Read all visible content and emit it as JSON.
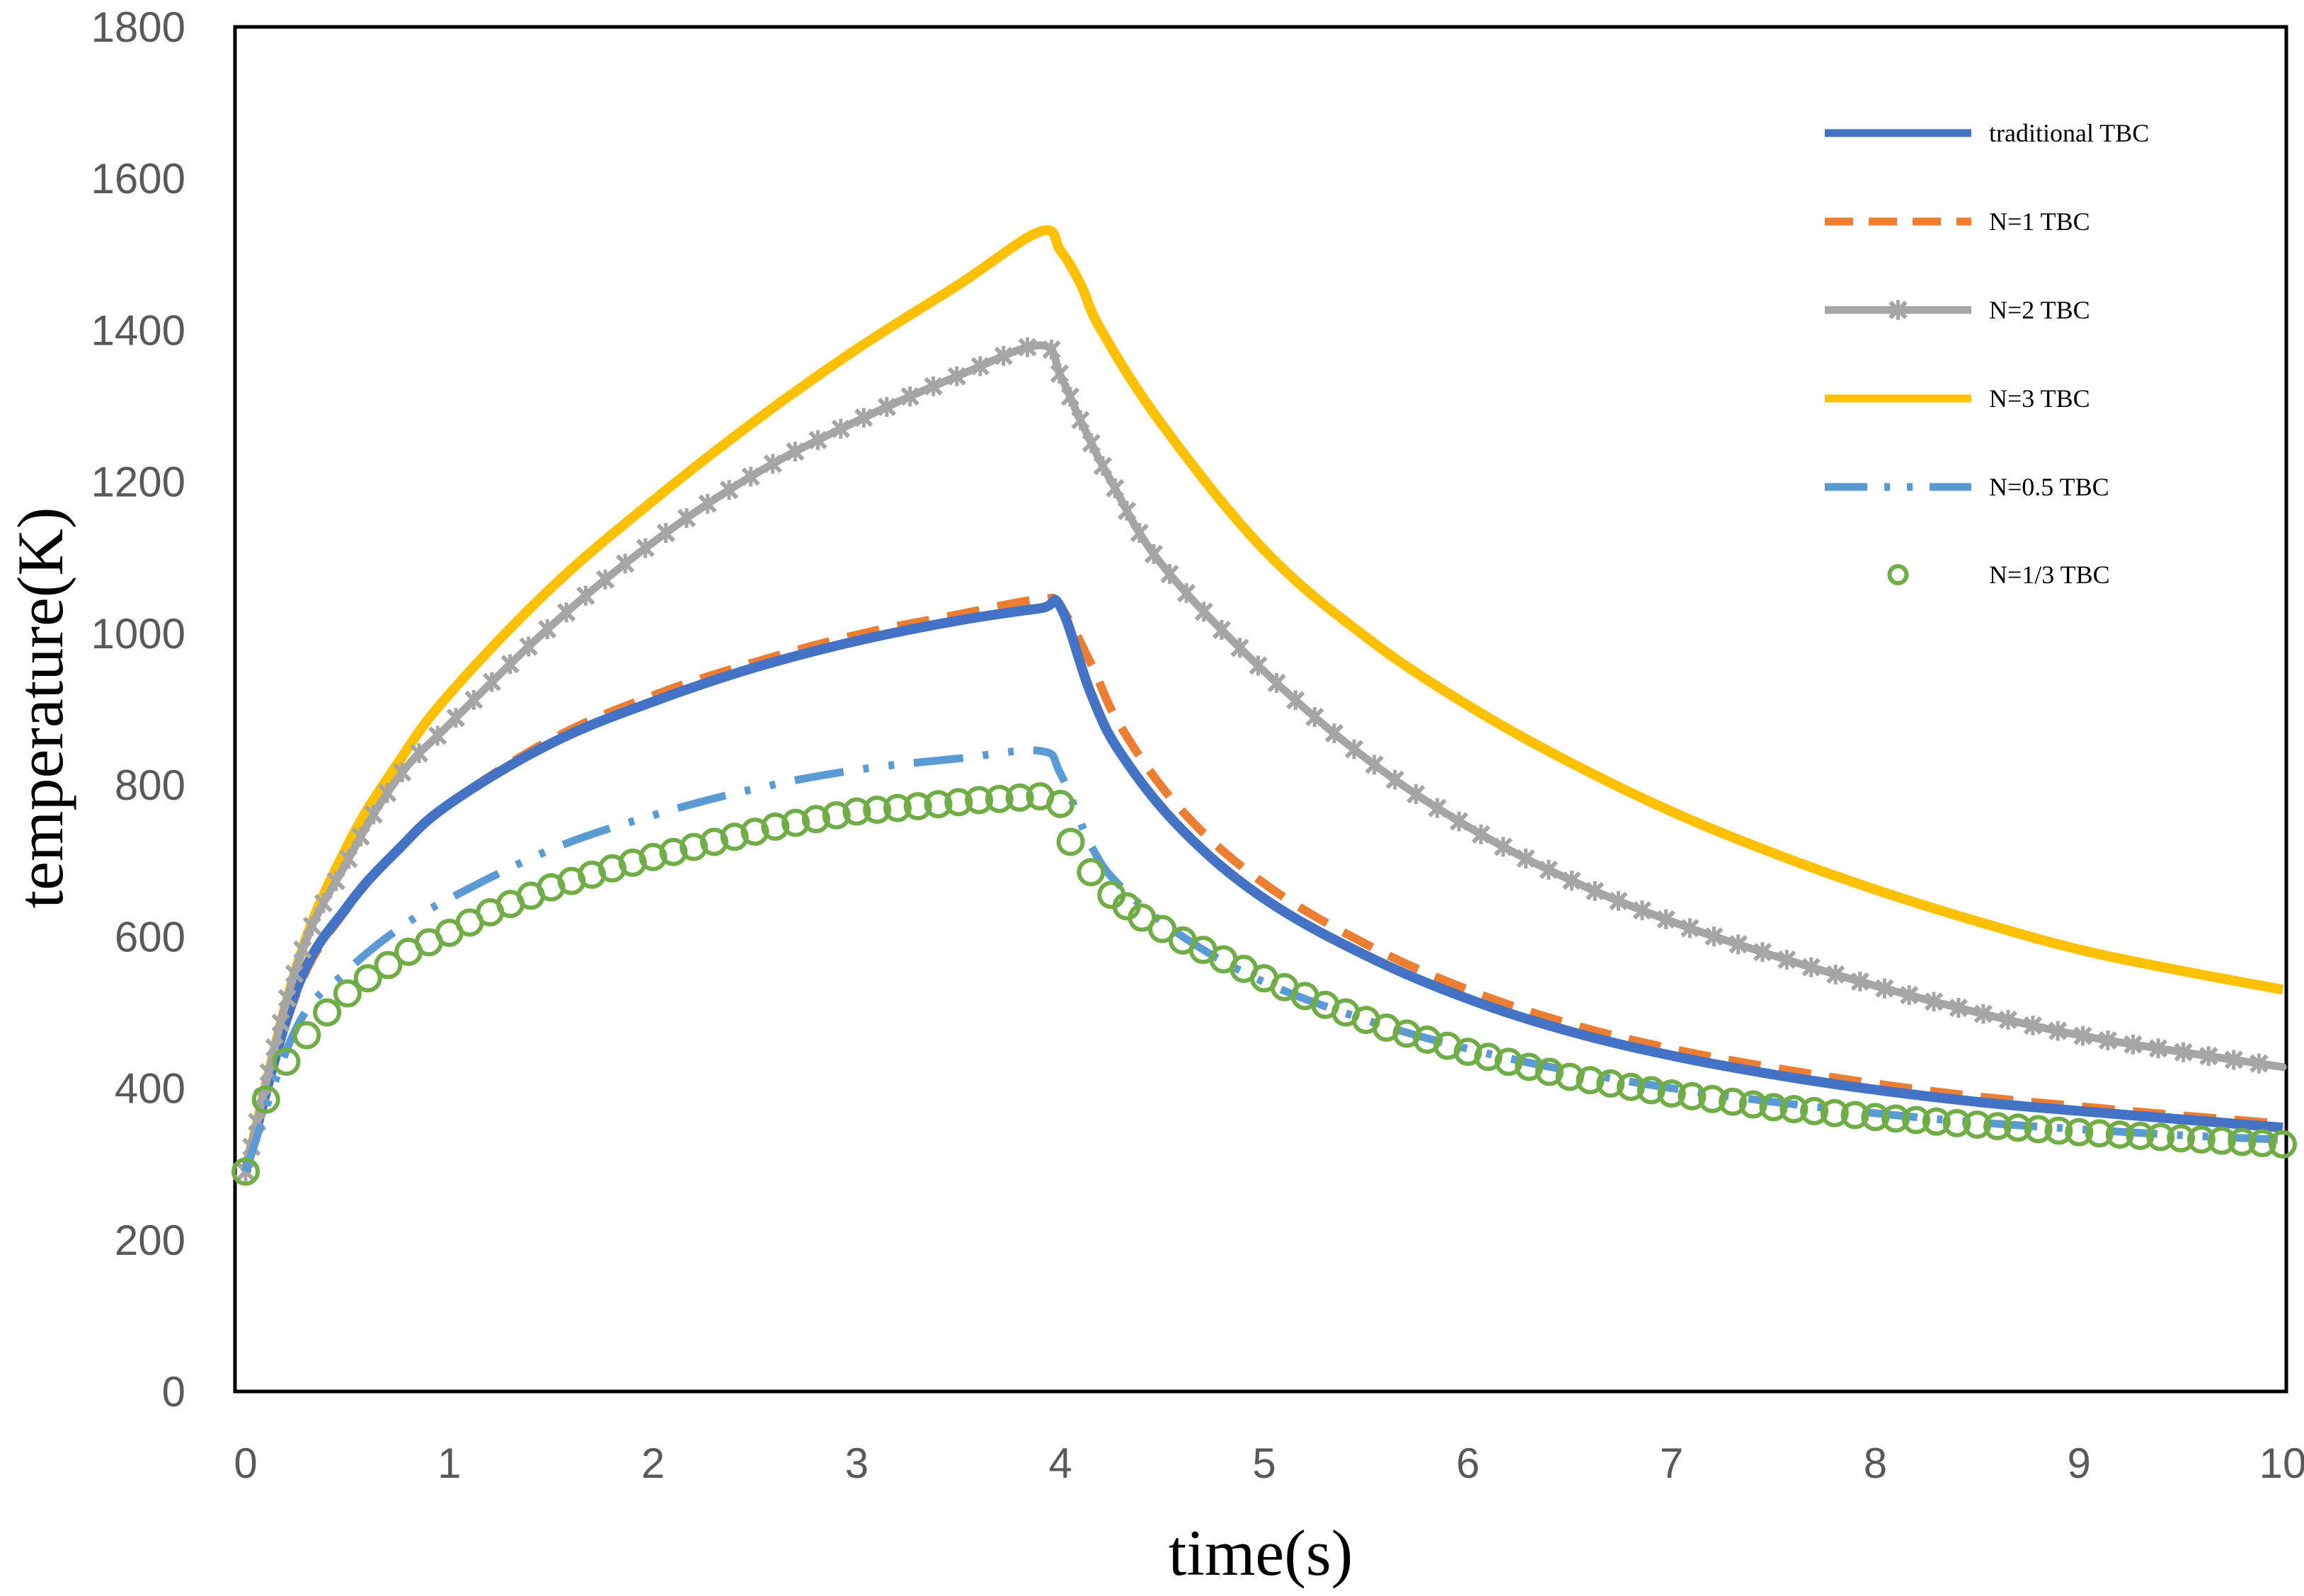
{
  "chart_data": {
    "type": "line",
    "title": "",
    "xlabel": "time(s)",
    "ylabel": "temperature(K)",
    "xlim": [
      0,
      10
    ],
    "ylim": [
      0,
      1800
    ],
    "xticks": [
      "0",
      "1",
      "2",
      "3",
      "4",
      "5",
      "6",
      "7",
      "8",
      "9",
      "10"
    ],
    "yticks": [
      "0",
      "200",
      "400",
      "600",
      "800",
      "1000",
      "1200",
      "1400",
      "1600",
      "1800"
    ],
    "grid": false,
    "legend_position": "top-right",
    "series": [
      {
        "name": "traditional TBC",
        "color": "#4472C4",
        "style": "solid",
        "x": [
          0,
          0.25,
          0.5,
          0.75,
          1,
          1.5,
          2,
          2.5,
          3,
          3.5,
          3.9,
          4.0,
          4.15,
          4.3,
          4.6,
          5,
          5.5,
          6,
          6.5,
          7,
          7.5,
          8,
          8.5,
          9,
          9.5,
          10
        ],
        "y": [
          290,
          530,
          640,
          715,
          775,
          855,
          910,
          955,
          990,
          1017,
          1033,
          1035,
          920,
          840,
          740,
          650,
          575,
          518,
          475,
          443,
          418,
          398,
          382,
          370,
          359,
          348
        ]
      },
      {
        "name": "N=1 TBC",
        "color": "#ED7D31",
        "style": "dashed",
        "x": [
          0,
          0.25,
          0.5,
          0.75,
          1,
          1.5,
          2,
          2.5,
          3,
          3.5,
          3.9,
          4.0,
          4.15,
          4.3,
          4.6,
          5,
          5.5,
          6,
          6.5,
          7,
          7.5,
          8,
          8.5,
          9,
          9.5,
          10
        ],
        "y": [
          290,
          525,
          638,
          715,
          775,
          860,
          918,
          962,
          998,
          1025,
          1045,
          1035,
          960,
          875,
          765,
          670,
          590,
          530,
          485,
          452,
          427,
          406,
          389,
          376,
          364,
          353
        ]
      },
      {
        "name": "N=2 TBC",
        "color": "#A5A5A5",
        "style": "star",
        "x": [
          0,
          0.25,
          0.5,
          0.75,
          1,
          1.5,
          2,
          2.5,
          3,
          3.5,
          3.9,
          4.0,
          4.1,
          4.25,
          4.5,
          5,
          5.5,
          6,
          6.5,
          7,
          7.5,
          8,
          8.5,
          9,
          9.5,
          10
        ],
        "y": [
          290,
          560,
          700,
          810,
          880,
          1010,
          1120,
          1210,
          1280,
          1340,
          1380,
          1340,
          1280,
          1200,
          1090,
          950,
          835,
          745,
          675,
          620,
          575,
          535,
          500,
          470,
          448,
          428
        ]
      },
      {
        "name": "N=3 TBC",
        "color": "#FFC000",
        "style": "solid",
        "x": [
          0,
          0.25,
          0.5,
          0.75,
          1,
          1.5,
          2,
          2.5,
          3,
          3.5,
          3.9,
          4.0,
          4.1,
          4.2,
          4.5,
          5,
          5.5,
          6,
          6.5,
          7,
          7.5,
          8,
          8.5,
          9,
          9.5,
          10
        ],
        "y": [
          290,
          560,
          720,
          830,
          920,
          1060,
          1175,
          1280,
          1375,
          1460,
          1530,
          1505,
          1460,
          1400,
          1275,
          1110,
          995,
          905,
          830,
          765,
          710,
          662,
          620,
          583,
          555,
          530
        ]
      },
      {
        "name": "N=0.5 TBC",
        "color": "#5B9BD5",
        "style": "dash-dot",
        "x": [
          0,
          0.25,
          0.5,
          0.75,
          1,
          1.5,
          2,
          2.5,
          3,
          3.5,
          3.9,
          4.0,
          4.15,
          4.3,
          4.6,
          5,
          5.5,
          6,
          6.5,
          7,
          7.5,
          8,
          8.5,
          9,
          9.5,
          10
        ],
        "y": [
          290,
          480,
          555,
          610,
          650,
          715,
          760,
          795,
          820,
          835,
          845,
          815,
          720,
          665,
          600,
          540,
          490,
          452,
          423,
          400,
          382,
          367,
          355,
          346,
          338,
          332
        ]
      },
      {
        "name": "N=1/3 TBC",
        "color": "#70AD47",
        "style": "circle",
        "x": [
          0,
          0.1,
          0.2,
          0.3,
          0.4,
          0.5,
          0.6,
          0.8,
          1,
          1.2,
          1.5,
          1.8,
          2,
          2.3,
          2.6,
          3,
          3.3,
          3.6,
          3.9,
          4.0,
          4.05,
          4.15,
          4.25,
          4.4,
          4.6,
          4.8,
          5,
          5.3,
          5.6,
          6,
          6.5,
          7,
          7.5,
          8,
          8.5,
          9,
          9.5,
          10
        ],
        "y": [
          290,
          385,
          435,
          470,
          500,
          525,
          545,
          580,
          605,
          632,
          665,
          690,
          705,
          725,
          745,
          765,
          772,
          780,
          785,
          775,
          725,
          685,
          655,
          625,
          595,
          570,
          545,
          510,
          480,
          448,
          415,
          393,
          375,
          362,
          352,
          342,
          334,
          326
        ]
      }
    ]
  }
}
